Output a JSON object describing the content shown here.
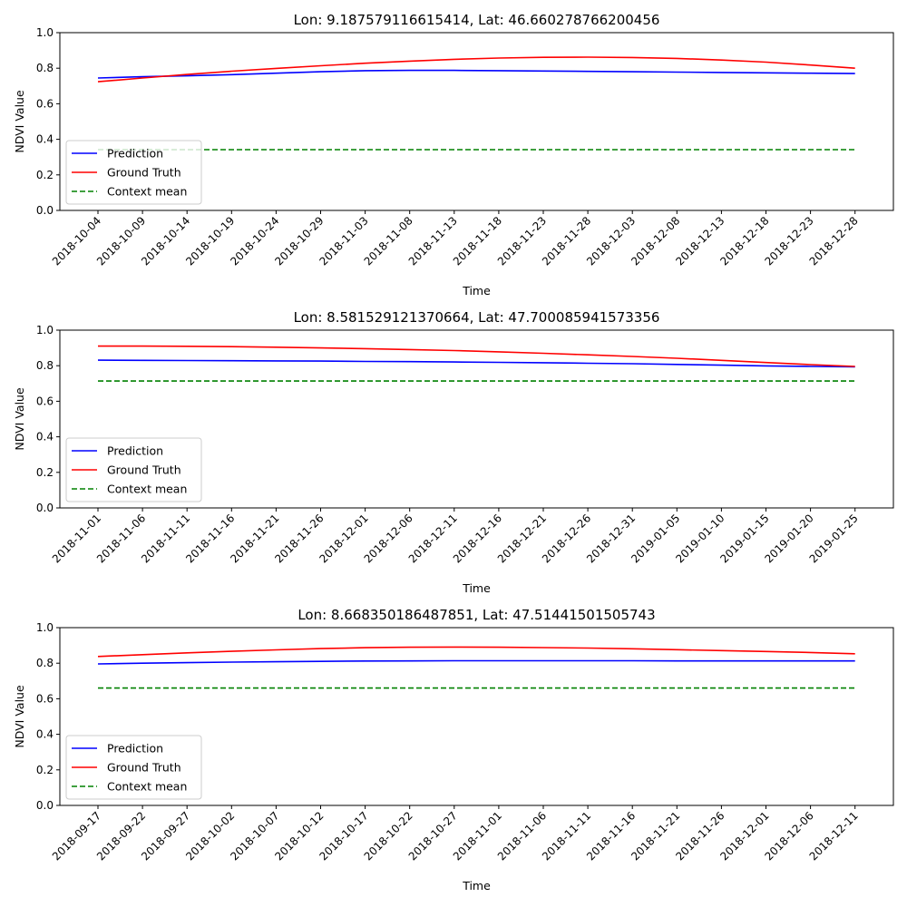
{
  "chart_data": [
    {
      "type": "line",
      "title": "Lon: 9.187579116615414, Lat: 46.660278766200456",
      "xlabel": "Time",
      "ylabel": "NDVI Value",
      "ylim": [
        0.0,
        1.0
      ],
      "yticks": [
        "0.0",
        "0.2",
        "0.4",
        "0.6",
        "0.8",
        "1.0"
      ],
      "x_tick_labels": [
        "2018-10-04",
        "2018-10-09",
        "2018-10-14",
        "2018-10-19",
        "2018-10-24",
        "2018-10-29",
        "2018-11-03",
        "2018-11-08",
        "2018-11-13",
        "2018-11-18",
        "2018-11-23",
        "2018-11-28",
        "2018-12-03",
        "2018-12-08",
        "2018-12-13",
        "2018-12-18",
        "2018-12-23",
        "2018-12-28"
      ],
      "legend_position": "lower-left",
      "grid": false,
      "series": [
        {
          "name": "Prediction",
          "color": "#0000ff",
          "style": "solid",
          "values": [
            0.745,
            0.752,
            0.757,
            0.764,
            0.772,
            0.78,
            0.786,
            0.788,
            0.788,
            0.786,
            0.784,
            0.782,
            0.78,
            0.778,
            0.776,
            0.774,
            0.772,
            0.77
          ]
        },
        {
          "name": "Ground Truth",
          "color": "#ff0000",
          "style": "solid",
          "values": [
            0.724,
            0.745,
            0.765,
            0.783,
            0.799,
            0.814,
            0.828,
            0.84,
            0.85,
            0.857,
            0.861,
            0.862,
            0.86,
            0.855,
            0.846,
            0.834,
            0.818,
            0.8
          ]
        },
        {
          "name": "Context mean",
          "color": "#008000",
          "style": "dashed",
          "values": [
            0.342,
            0.342,
            0.342,
            0.342,
            0.342,
            0.342,
            0.342,
            0.342,
            0.342,
            0.342,
            0.342,
            0.342,
            0.342,
            0.342,
            0.342,
            0.342,
            0.342,
            0.342
          ]
        }
      ]
    },
    {
      "type": "line",
      "title": "Lon: 8.581529121370664, Lat: 47.700085941573356",
      "xlabel": "Time",
      "ylabel": "NDVI Value",
      "ylim": [
        0.0,
        1.0
      ],
      "yticks": [
        "0.0",
        "0.2",
        "0.4",
        "0.6",
        "0.8",
        "1.0"
      ],
      "x_tick_labels": [
        "2018-11-01",
        "2018-11-06",
        "2018-11-11",
        "2018-11-16",
        "2018-11-21",
        "2018-11-26",
        "2018-12-01",
        "2018-12-06",
        "2018-12-11",
        "2018-12-16",
        "2018-12-21",
        "2018-12-26",
        "2018-12-31",
        "2019-01-05",
        "2019-01-10",
        "2019-01-15",
        "2019-01-20",
        "2019-01-25"
      ],
      "legend_position": "lower-left",
      "grid": false,
      "series": [
        {
          "name": "Prediction",
          "color": "#0000ff",
          "style": "solid",
          "values": [
            0.831,
            0.83,
            0.829,
            0.828,
            0.827,
            0.826,
            0.824,
            0.823,
            0.821,
            0.819,
            0.817,
            0.814,
            0.811,
            0.807,
            0.803,
            0.799,
            0.796,
            0.794
          ]
        },
        {
          "name": "Ground Truth",
          "color": "#ff0000",
          "style": "solid",
          "values": [
            0.91,
            0.91,
            0.909,
            0.907,
            0.904,
            0.9,
            0.896,
            0.891,
            0.885,
            0.878,
            0.87,
            0.861,
            0.852,
            0.842,
            0.83,
            0.818,
            0.806,
            0.796
          ]
        },
        {
          "name": "Context mean",
          "color": "#008000",
          "style": "dashed",
          "values": [
            0.714,
            0.714,
            0.714,
            0.714,
            0.714,
            0.714,
            0.714,
            0.714,
            0.714,
            0.714,
            0.714,
            0.714,
            0.714,
            0.714,
            0.714,
            0.714,
            0.714,
            0.714
          ]
        }
      ]
    },
    {
      "type": "line",
      "title": "Lon: 8.668350186487851, Lat: 47.51441501505743",
      "xlabel": "Time",
      "ylabel": "NDVI Value",
      "ylim": [
        0.0,
        1.0
      ],
      "yticks": [
        "0.0",
        "0.2",
        "0.4",
        "0.6",
        "0.8",
        "1.0"
      ],
      "x_tick_labels": [
        "2018-09-17",
        "2018-09-22",
        "2018-09-27",
        "2018-10-02",
        "2018-10-07",
        "2018-10-12",
        "2018-10-17",
        "2018-10-22",
        "2018-10-27",
        "2018-11-01",
        "2018-11-06",
        "2018-11-11",
        "2018-11-16",
        "2018-11-21",
        "2018-11-26",
        "2018-12-01",
        "2018-12-06",
        "2018-12-11"
      ],
      "legend_position": "lower-left",
      "grid": false,
      "series": [
        {
          "name": "Prediction",
          "color": "#0000ff",
          "style": "solid",
          "values": [
            0.796,
            0.8,
            0.803,
            0.806,
            0.808,
            0.81,
            0.812,
            0.813,
            0.814,
            0.814,
            0.814,
            0.814,
            0.814,
            0.813,
            0.813,
            0.813,
            0.813,
            0.813
          ]
        },
        {
          "name": "Ground Truth",
          "color": "#ff0000",
          "style": "solid",
          "values": [
            0.838,
            0.848,
            0.858,
            0.867,
            0.875,
            0.882,
            0.887,
            0.89,
            0.891,
            0.89,
            0.888,
            0.885,
            0.881,
            0.876,
            0.871,
            0.866,
            0.86,
            0.853
          ]
        },
        {
          "name": "Context mean",
          "color": "#008000",
          "style": "dashed",
          "values": [
            0.66,
            0.66,
            0.66,
            0.66,
            0.66,
            0.66,
            0.66,
            0.66,
            0.66,
            0.66,
            0.66,
            0.66,
            0.66,
            0.66,
            0.66,
            0.66,
            0.66,
            0.66
          ]
        }
      ]
    }
  ]
}
